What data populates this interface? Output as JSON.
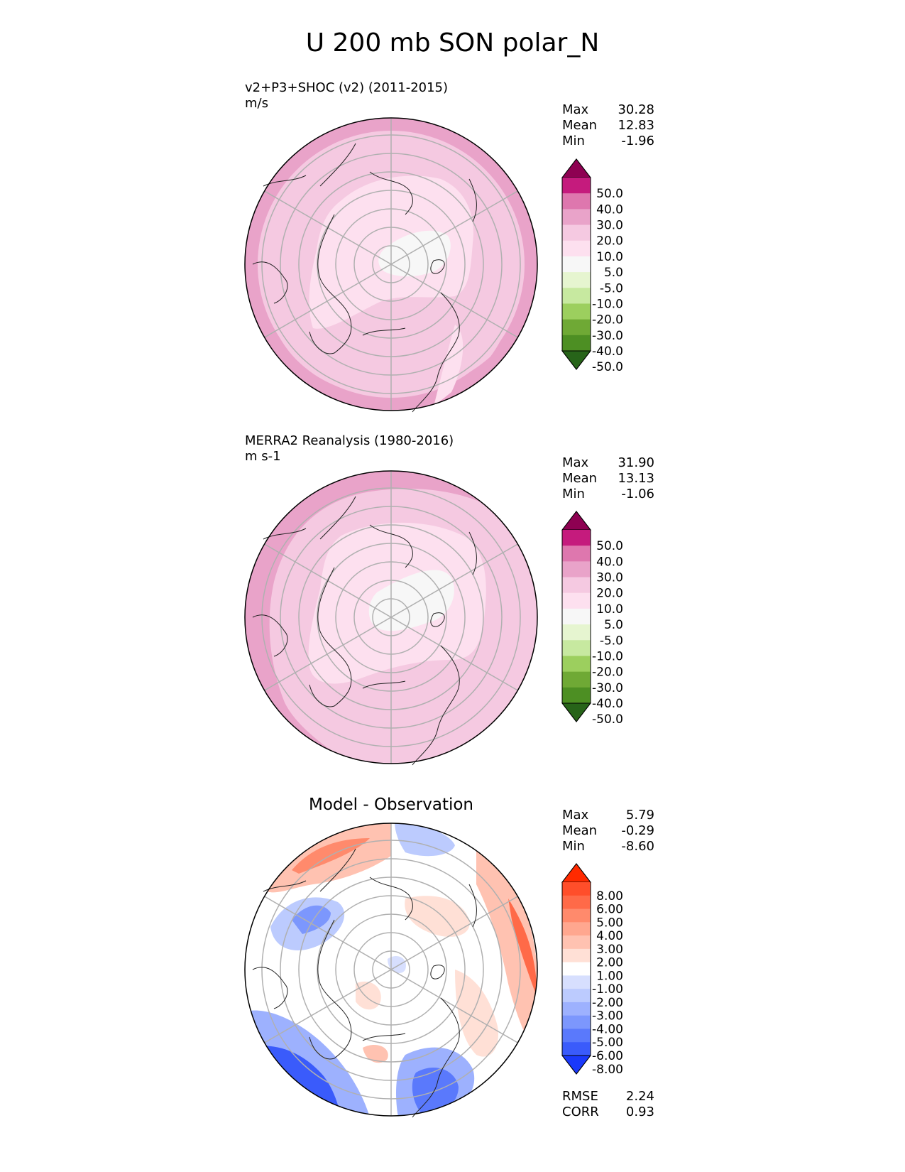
{
  "title": "U 200 mb SON polar_N",
  "panels": [
    {
      "title": "v2+P3+SHOC (v2) (2011-2015)",
      "units": "m/s",
      "stats": [
        {
          "label": "Max",
          "value": "30.28"
        },
        {
          "label": "Mean",
          "value": "12.83"
        },
        {
          "label": "Min",
          "value": "-1.96"
        }
      ]
    },
    {
      "title": "MERRA2 Reanalysis (1980-2016)",
      "units": "m s-1",
      "stats": [
        {
          "label": "Max",
          "value": "31.90"
        },
        {
          "label": "Mean",
          "value": "13.13"
        },
        {
          "label": "Min",
          "value": "-1.06"
        }
      ]
    },
    {
      "title": "Model - Observation",
      "stats": [
        {
          "label": "Max",
          "value": "5.79"
        },
        {
          "label": "Mean",
          "value": "-0.29"
        },
        {
          "label": "Min",
          "value": "-8.60"
        }
      ],
      "metrics": [
        {
          "label": "RMSE",
          "value": "2.24"
        },
        {
          "label": "CORR",
          "value": "0.93"
        }
      ]
    }
  ],
  "colorbars": {
    "field": {
      "ticks": [
        "50.0",
        "40.0",
        "30.0",
        "20.0",
        "10.0",
        "5.0",
        "-5.0",
        "-10.0",
        "-20.0",
        "-30.0",
        "-40.0",
        "-50.0"
      ],
      "colors": [
        "#8e0152",
        "#c51b7d",
        "#de77ae",
        "#e9a3c9",
        "#f5c9e1",
        "#fde0ef",
        "#f7f7f7",
        "#e6f5d0",
        "#c7e9a0",
        "#9ccf5e",
        "#6fa935",
        "#4d8f23",
        "#276419"
      ]
    },
    "diff": {
      "ticks": [
        "8.00",
        "6.00",
        "5.00",
        "4.00",
        "3.00",
        "2.00",
        "1.00",
        "-1.00",
        "-2.00",
        "-3.00",
        "-4.00",
        "-5.00",
        "-6.00",
        "-8.00"
      ],
      "colors": [
        "#ff2a00",
        "#ff4e2a",
        "#ff6a48",
        "#ff8a6c",
        "#ffa78f",
        "#ffc2b1",
        "#ffe0d6",
        "#ffffff",
        "#d7dffe",
        "#bccbfe",
        "#9db1fe",
        "#7c97fd",
        "#5a79fc",
        "#3a5bfb",
        "#1a39fb"
      ]
    }
  }
}
